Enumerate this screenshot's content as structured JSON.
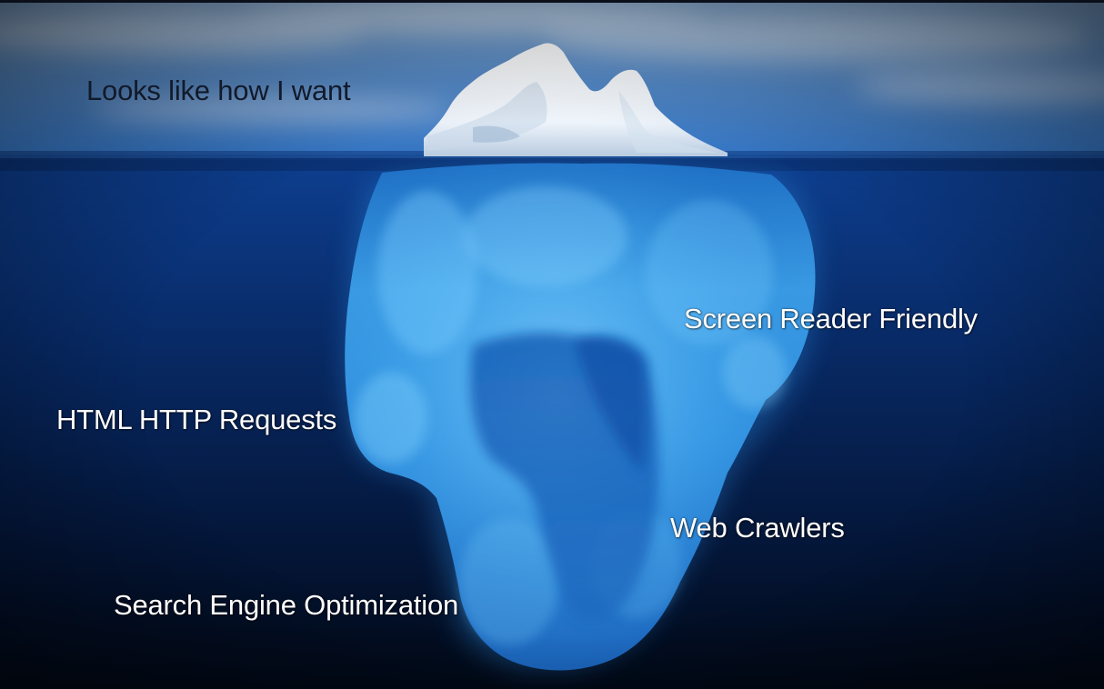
{
  "labels": {
    "above_water": "Looks like how I want",
    "screen_reader": "Screen Reader Friendly",
    "http_requests": "HTML HTTP Requests",
    "web_crawlers": "Web Crawlers",
    "seo": "Search Engine Optimization"
  },
  "colors": {
    "sky_top": "#6f9bc9",
    "sky_bottom": "#3c7ac4",
    "deep_water_top": "#0b3a8a",
    "deep_water_bottom": "#020a1c",
    "ice_tip": "#ffffff",
    "ice_submerged": "#3aa6ec",
    "label_above": "#111a2a",
    "label_below": "#ffffff"
  }
}
